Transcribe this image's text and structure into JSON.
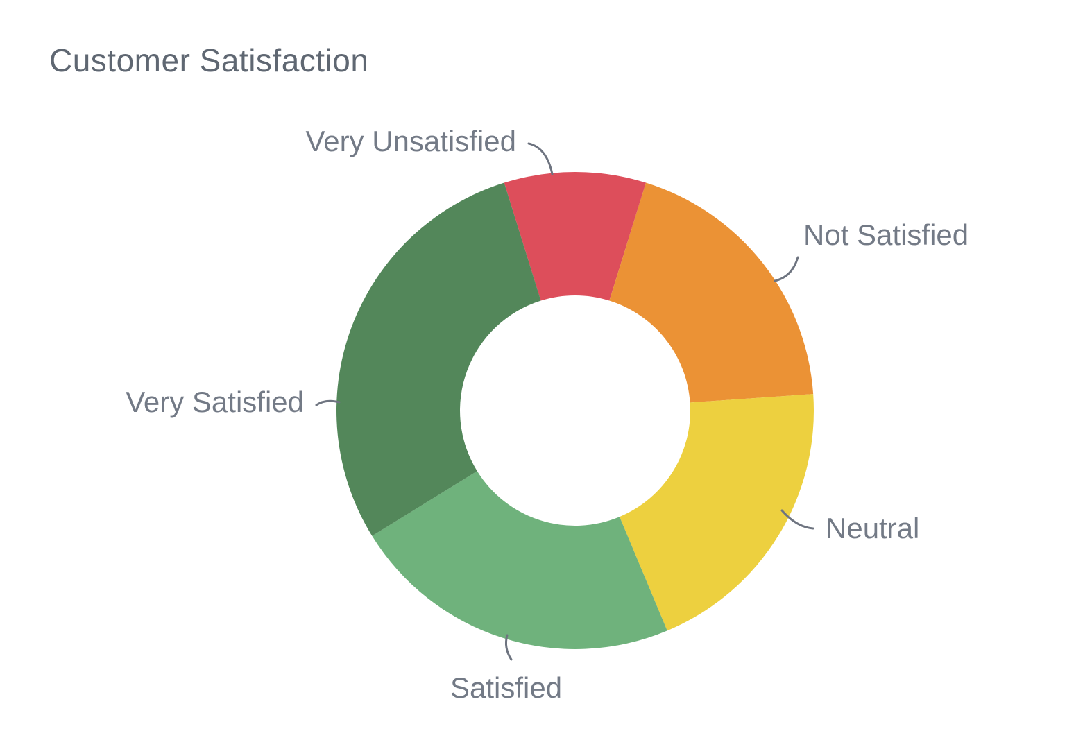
{
  "chart_data": {
    "type": "pie",
    "variant": "donut",
    "title": "Customer Satisfaction",
    "segments": [
      {
        "label": "Very Unsatisfied",
        "value": 9.6,
        "color": "#DD4E5B"
      },
      {
        "label": "Not Satisfied",
        "value": 19.1,
        "color": "#EB9235"
      },
      {
        "label": "Neutral",
        "value": 19.8,
        "color": "#EDD03F"
      },
      {
        "label": "Satisfied",
        "value": 22.5,
        "color": "#6FB27C"
      },
      {
        "label": "Very Satisfied",
        "value": 29.0,
        "color": "#53875A"
      }
    ],
    "values_unit": "percent (estimated from arc angles; no numeric labels shown)",
    "start_angle_deg": -17.3,
    "direction": "clockwise",
    "inner_radius_ratio": 0.483,
    "legend": "none",
    "labels_style": "outside-with-curved-leader-lines",
    "leader_line_color": "#6e7480",
    "title_color": "#5f6772",
    "label_color": "#737a86",
    "background_color": "#ffffff"
  }
}
